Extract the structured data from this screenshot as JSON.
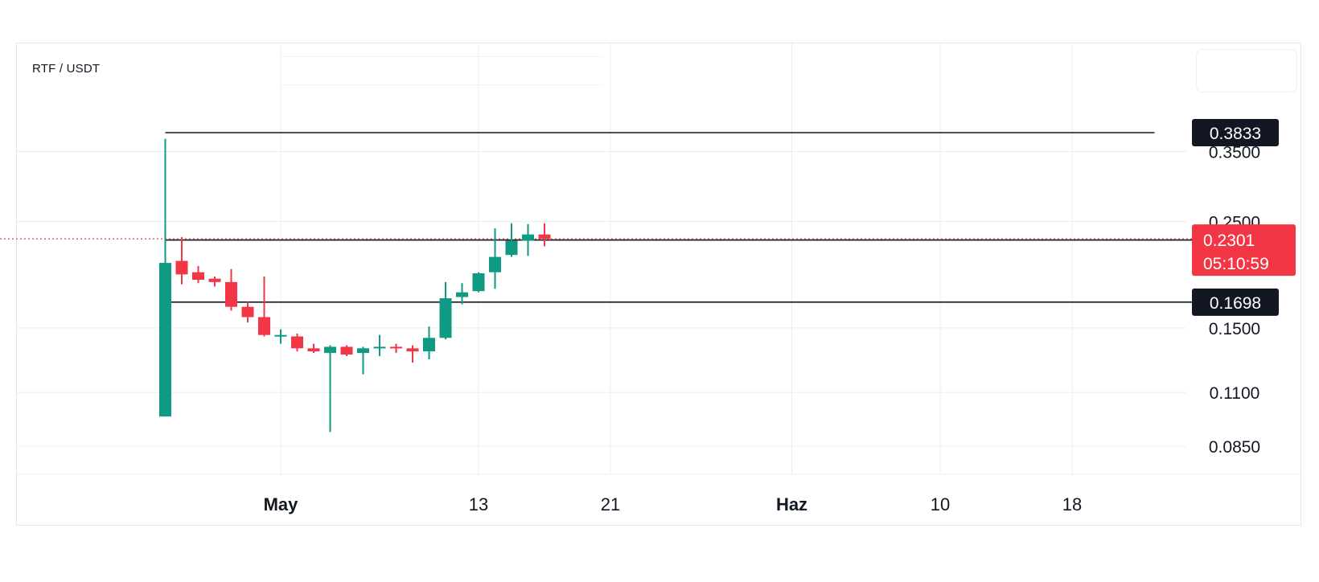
{
  "header": {
    "pair": "RTF /  USDT"
  },
  "colors": {
    "up": "#0f9a83",
    "down": "#f23645",
    "grid": "#ececec",
    "line": "#131722",
    "tag_bg": "#131722"
  },
  "chart_data": {
    "type": "candlestick",
    "title": "RTF / USDT",
    "price_axis": {
      "ticks": [
        "0.3500",
        "0.2500",
        "0.1500",
        "0.1100",
        "0.0850"
      ],
      "scale": "log",
      "range": [
        0.075,
        0.42
      ]
    },
    "time_axis": {
      "ticks": [
        {
          "label": "May",
          "bold": true,
          "day": 0
        },
        {
          "label": "13",
          "bold": false,
          "day": 12
        },
        {
          "label": "21",
          "bold": false,
          "day": 20
        },
        {
          "label": "Haz",
          "bold": true,
          "day": 31
        },
        {
          "label": "10",
          "bold": false,
          "day": 40
        },
        {
          "label": "18",
          "bold": false,
          "day": 48
        }
      ]
    },
    "candles": [
      {
        "day": -7,
        "open": 0.098,
        "high": 0.372,
        "low": 0.098,
        "close": 0.205
      },
      {
        "day": -6,
        "open": 0.207,
        "high": 0.232,
        "low": 0.185,
        "close": 0.194
      },
      {
        "day": -5,
        "open": 0.196,
        "high": 0.202,
        "low": 0.186,
        "close": 0.189
      },
      {
        "day": -4,
        "open": 0.19,
        "high": 0.192,
        "low": 0.183,
        "close": 0.187
      },
      {
        "day": -3,
        "open": 0.187,
        "high": 0.199,
        "low": 0.163,
        "close": 0.166
      },
      {
        "day": -2,
        "open": 0.166,
        "high": 0.17,
        "low": 0.154,
        "close": 0.158
      },
      {
        "day": -1,
        "open": 0.158,
        "high": 0.192,
        "low": 0.144,
        "close": 0.145
      },
      {
        "day": 0,
        "open": 0.145,
        "high": 0.149,
        "low": 0.139,
        "close": 0.145
      },
      {
        "day": 1,
        "open": 0.144,
        "high": 0.146,
        "low": 0.134,
        "close": 0.136
      },
      {
        "day": 2,
        "open": 0.136,
        "high": 0.139,
        "low": 0.133,
        "close": 0.134
      },
      {
        "day": 3,
        "open": 0.133,
        "high": 0.138,
        "low": 0.091,
        "close": 0.137
      },
      {
        "day": 4,
        "open": 0.137,
        "high": 0.138,
        "low": 0.131,
        "close": 0.132
      },
      {
        "day": 5,
        "open": 0.133,
        "high": 0.137,
        "low": 0.12,
        "close": 0.136
      },
      {
        "day": 6,
        "open": 0.136,
        "high": 0.145,
        "low": 0.131,
        "close": 0.137
      },
      {
        "day": 7,
        "open": 0.137,
        "high": 0.139,
        "low": 0.133,
        "close": 0.136
      },
      {
        "day": 8,
        "open": 0.136,
        "high": 0.138,
        "low": 0.127,
        "close": 0.134
      },
      {
        "day": 9,
        "open": 0.134,
        "high": 0.151,
        "low": 0.129,
        "close": 0.143
      },
      {
        "day": 10,
        "open": 0.143,
        "high": 0.187,
        "low": 0.142,
        "close": 0.173
      },
      {
        "day": 11,
        "open": 0.174,
        "high": 0.186,
        "low": 0.168,
        "close": 0.178
      },
      {
        "day": 12,
        "open": 0.179,
        "high": 0.196,
        "low": 0.178,
        "close": 0.195
      },
      {
        "day": 13,
        "open": 0.196,
        "high": 0.242,
        "low": 0.181,
        "close": 0.211
      },
      {
        "day": 14,
        "open": 0.213,
        "high": 0.248,
        "low": 0.211,
        "close": 0.228
      },
      {
        "day": 15,
        "open": 0.228,
        "high": 0.247,
        "low": 0.212,
        "close": 0.235
      },
      {
        "day": 16,
        "open": 0.235,
        "high": 0.248,
        "low": 0.222,
        "close": 0.2301
      }
    ],
    "horizontal_lines": [
      {
        "label": "0.3833",
        "value": 0.3833,
        "from_day": -7,
        "to_day": 53
      },
      {
        "label": "0.2288",
        "value": 0.2288,
        "from_day": -7,
        "to_day": 60
      },
      {
        "label": "0.1698",
        "value": 0.1698,
        "from_day": -7,
        "to_day": 60
      }
    ],
    "last_price": {
      "label": "0.2301",
      "value": 0.2301,
      "countdown": "05:10:59"
    }
  }
}
